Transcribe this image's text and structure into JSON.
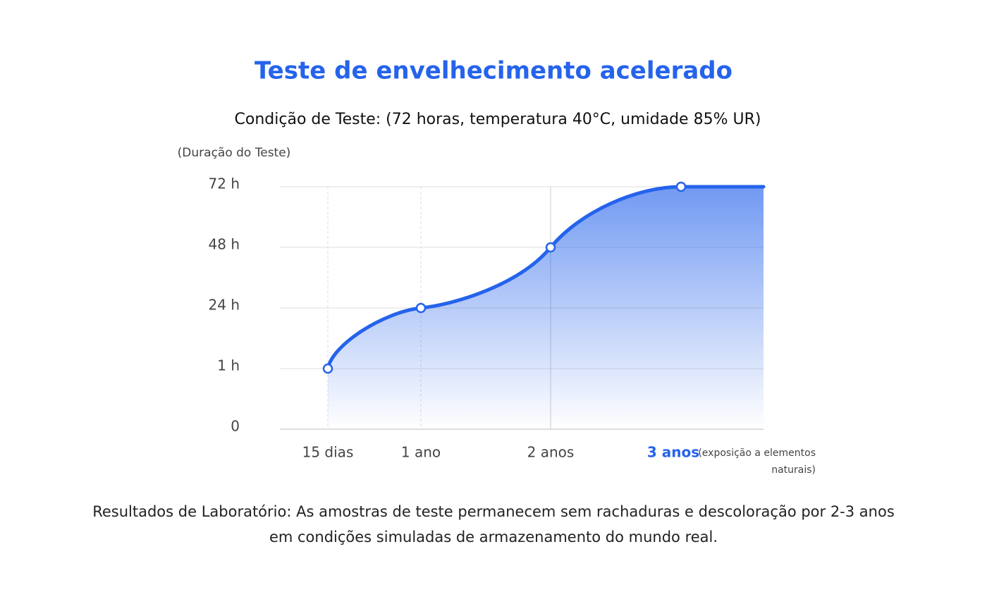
{
  "chart_data": {
    "type": "line",
    "title": "Teste de envelhecimento acelerado",
    "subtitle": "Condição de Teste: (72 horas, temperatura 40°C, umidade 85% UR)",
    "y_label": "(Duração do Teste)",
    "categories": [
      "15 dias",
      "1 ano",
      "2 anos",
      "3 anos"
    ],
    "annotation": "(exposição a elementos naturais)",
    "series": [
      {
        "name": "Duração do Teste",
        "color": "#2563eb",
        "values": [
          1,
          24,
          48,
          72
        ]
      }
    ],
    "ylim": [
      0,
      72
    ],
    "yticks": [
      0,
      {
        "value": 1,
        "label": "1 h"
      },
      {
        "value": 24,
        "label": "24 h"
      },
      {
        "value": 48,
        "label": "48 h"
      },
      {
        "value": 72,
        "label": "72 h"
      }
    ],
    "grid": true
  },
  "footer": "Resultados de Laboratório: As amostras de teste permanecem sem rachaduras e descoloração por 2-3 anos em condições simuladas de armazenamento do mundo real."
}
